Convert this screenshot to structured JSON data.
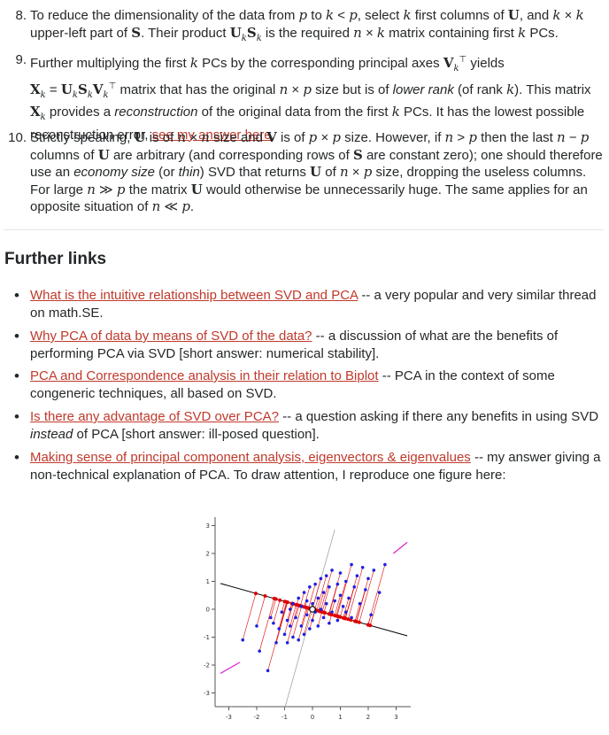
{
  "list": {
    "item8": {
      "num": "8.",
      "t1": "To reduce the dimensionality of the data from ",
      "t2": " to ",
      "t3": ", select ",
      "t4": " first columns of ",
      "t5": ", and ",
      "t6": " upper-left part of ",
      "t7": ". Their product ",
      "t8": " is the required ",
      "t9": " matrix containing first ",
      "t10": " PCs."
    },
    "item9": {
      "num": "9.",
      "t1": "Further multiplying the first ",
      "t2": " PCs by the corresponding principal axes ",
      "t3": " yields",
      "t4": " matrix that has the original ",
      "t5": " size but is of ",
      "em1": "lower rank",
      "t6": " (of rank ",
      "t7": "). This matrix ",
      "t8": " provides a ",
      "em2": "reconstruction",
      "t9": " of the original data from the first ",
      "t10": " PCs. It has the lowest possible reconstruction error, ",
      "link": "see my answer here",
      "t11": "."
    },
    "item10": {
      "num": "10.",
      "t1": "Strictly speaking, ",
      "t2": " is of ",
      "t3": " size and ",
      "t4": " is of ",
      "t5": " size. However, if ",
      "t6": " then the last ",
      "t7": " columns of ",
      "t8": " are arbitrary (and corresponding rows of ",
      "t9": " are constant zero); one should therefore use an ",
      "em1": "economy size",
      "t10": " (or ",
      "em2": "thin",
      "t11": ") SVD that returns ",
      "t12": " of ",
      "t13": " size, dropping the useless columns. For large ",
      "t14": " the matrix ",
      "t15": " would otherwise be unnecessarily huge. The same applies for an opposite situation of ",
      "t16": "."
    }
  },
  "heading": "Further links",
  "links": [
    {
      "link": "What is the intuitive relationship between SVD and PCA",
      "rest": " -- a very popular and very similar thread on math.SE."
    },
    {
      "link": "Why PCA of data by means of SVD of the data?",
      "rest": " -- a discussion of what are the benefits of performing PCA via SVD [short answer: numerical stability]."
    },
    {
      "link": "PCA and Correspondence analysis in their relation to Biplot",
      "rest": " -- PCA in the context of some congeneric techniques, all based on SVD."
    },
    {
      "link": "Is there any advantage of SVD over PCA?",
      "rest": " -- a question asking if there any benefits in using SVD ",
      "em": "instead",
      "rest2": " of PCA [short answer: ill-posed question]."
    },
    {
      "link": "Making sense of principal component analysis, eigenvectors & eigenvalues",
      "rest": " -- my answer giving a non-technical explanation of PCA. To draw attention, I reproduce one figure here:"
    }
  ],
  "colors": {
    "link": "#c0392b",
    "points": "#1f1fe0",
    "projection": "#e00000",
    "axis_end": "#e020d0"
  },
  "chart_data": {
    "type": "scatter",
    "x_ticks": [
      "-3",
      "-2",
      "-1",
      "0",
      "1",
      "2",
      "3"
    ],
    "y_ticks": [
      "3",
      "2",
      "1",
      "0",
      "-1",
      "-2",
      "-3"
    ],
    "xlim": [
      -3.3,
      3.4
    ],
    "ylim": [
      -3.4,
      3.4
    ],
    "pc_slope": -0.28,
    "points": [
      [
        -2.5,
        -1.1
      ],
      [
        -2.0,
        -0.6
      ],
      [
        -1.9,
        -1.5
      ],
      [
        -1.6,
        -2.2
      ],
      [
        -1.5,
        -0.3
      ],
      [
        -1.3,
        -1.2
      ],
      [
        -1.2,
        -0.7
      ],
      [
        -1.1,
        -0.1
      ],
      [
        -1.0,
        -0.9
      ],
      [
        -0.9,
        -1.2
      ],
      [
        -0.9,
        -0.4
      ],
      [
        -0.8,
        -0.6
      ],
      [
        -0.7,
        -1.0
      ],
      [
        -0.7,
        0.2
      ],
      [
        -0.6,
        -0.3
      ],
      [
        -0.5,
        -1.1
      ],
      [
        -0.5,
        0.4
      ],
      [
        -0.4,
        -0.6
      ],
      [
        -0.4,
        0.1
      ],
      [
        -0.3,
        -0.9
      ],
      [
        -0.3,
        0.6
      ],
      [
        -0.2,
        -0.2
      ],
      [
        -0.2,
        0.3
      ],
      [
        -0.1,
        -0.7
      ],
      [
        -0.1,
        0.8
      ],
      [
        0.0,
        -0.4
      ],
      [
        0.0,
        0.2
      ],
      [
        0.1,
        0.9
      ],
      [
        0.1,
        -0.1
      ],
      [
        0.2,
        0.4
      ],
      [
        0.2,
        -0.6
      ],
      [
        0.3,
        1.1
      ],
      [
        0.3,
        0.0
      ],
      [
        0.4,
        0.6
      ],
      [
        0.4,
        -0.3
      ],
      [
        0.5,
        1.2
      ],
      [
        0.5,
        0.2
      ],
      [
        0.6,
        0.8
      ],
      [
        0.7,
        -0.1
      ],
      [
        0.7,
        1.4
      ],
      [
        0.8,
        0.3
      ],
      [
        0.9,
        0.9
      ],
      [
        0.9,
        -0.4
      ],
      [
        1.0,
        1.3
      ],
      [
        1.0,
        0.5
      ],
      [
        1.1,
        0.1
      ],
      [
        1.2,
        1.0
      ],
      [
        1.3,
        0.4
      ],
      [
        1.4,
        1.6
      ],
      [
        1.4,
        -0.3
      ],
      [
        1.5,
        0.8
      ],
      [
        1.6,
        1.2
      ],
      [
        1.7,
        0.2
      ],
      [
        1.8,
        1.5
      ],
      [
        1.9,
        0.7
      ],
      [
        2.0,
        1.1
      ],
      [
        2.1,
        -0.2
      ],
      [
        2.2,
        1.4
      ],
      [
        2.4,
        0.6
      ],
      [
        2.6,
        1.6
      ],
      [
        -0.8,
        0.0
      ],
      [
        -1.4,
        -0.5
      ],
      [
        0.6,
        -0.5
      ],
      [
        1.2,
        -0.1
      ]
    ]
  }
}
